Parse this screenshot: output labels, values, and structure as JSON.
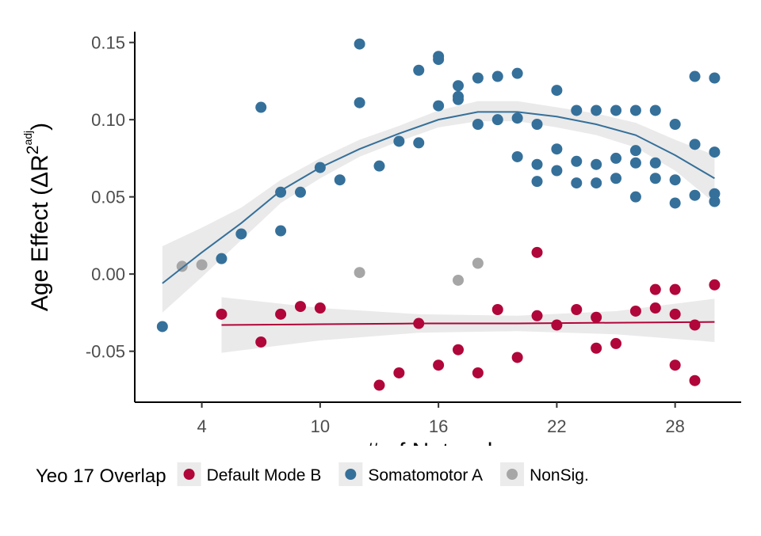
{
  "chart_data": {
    "type": "scatter",
    "y_label": {
      "text": "Age Effect (ΔR",
      "sup": "2",
      "sup_sub": "adj",
      "close": ")"
    },
    "x_label": "# of Networks",
    "legend_title": "Yeo 17 Overlap",
    "xlim": [
      0.6,
      31.35
    ],
    "ylim": [
      -0.083,
      0.157
    ],
    "xticks": [
      4,
      10,
      16,
      22,
      28
    ],
    "yticks": [
      -0.05,
      {
        "value": 0,
        "label": "0.00"
      },
      0.05,
      {
        "value": 0.1,
        "label": "0.10"
      },
      0.15
    ],
    "band_color": "#e6e6e6",
    "series": [
      {
        "name": "Default Mode B",
        "color": "#b0063a",
        "x": [
          5,
          7,
          8,
          9,
          10,
          13,
          14,
          15,
          16,
          17,
          18,
          19,
          20,
          21,
          21,
          22,
          23,
          24,
          24,
          25,
          26,
          27,
          27,
          28,
          28,
          28,
          29,
          29,
          30
        ],
        "values": [
          -0.026,
          -0.044,
          -0.026,
          -0.021,
          -0.022,
          -0.072,
          -0.064,
          -0.032,
          -0.059,
          -0.049,
          -0.064,
          -0.023,
          -0.054,
          0.014,
          -0.027,
          -0.033,
          -0.023,
          -0.028,
          -0.048,
          -0.045,
          -0.024,
          -0.01,
          -0.022,
          -0.01,
          -0.026,
          -0.059,
          -0.033,
          -0.069,
          -0.007
        ],
        "fit": {
          "x": [
            5,
            10,
            15,
            20,
            25,
            30
          ],
          "values": [
            -0.033,
            -0.0325,
            -0.032,
            -0.032,
            -0.0315,
            -0.031
          ],
          "upper": [
            -0.015,
            -0.022,
            -0.026,
            -0.027,
            -0.024,
            -0.016
          ],
          "lower": [
            -0.051,
            -0.043,
            -0.038,
            -0.037,
            -0.039,
            -0.044
          ]
        }
      },
      {
        "name": "Somatomotor A",
        "color": "#35709a",
        "x": [
          2,
          5,
          6,
          7,
          8,
          8,
          9,
          10,
          11,
          12,
          12,
          13,
          14,
          15,
          15,
          16,
          16,
          16,
          17,
          17,
          17,
          18,
          18,
          19,
          19,
          20,
          20,
          20,
          21,
          21,
          21,
          22,
          22,
          22,
          23,
          23,
          23,
          24,
          24,
          24,
          25,
          25,
          25,
          26,
          26,
          26,
          26,
          27,
          27,
          27,
          28,
          28,
          28,
          29,
          29,
          29,
          30,
          30,
          30,
          30
        ],
        "values": [
          -0.034,
          0.01,
          0.026,
          0.108,
          0.053,
          0.028,
          0.053,
          0.069,
          0.061,
          0.149,
          0.111,
          0.07,
          0.086,
          0.132,
          0.085,
          0.141,
          0.139,
          0.109,
          0.122,
          0.115,
          0.113,
          0.127,
          0.097,
          0.128,
          0.1,
          0.13,
          0.101,
          0.076,
          0.097,
          0.071,
          0.06,
          0.119,
          0.081,
          0.067,
          0.106,
          0.073,
          0.059,
          0.106,
          0.071,
          0.059,
          0.106,
          0.075,
          0.062,
          0.106,
          0.08,
          0.072,
          0.05,
          0.106,
          0.072,
          0.062,
          0.097,
          0.061,
          0.046,
          0.128,
          0.084,
          0.051,
          0.127,
          0.079,
          0.052,
          0.047
        ],
        "fit": {
          "x": [
            2,
            4,
            6,
            8,
            10,
            12,
            14,
            16,
            18,
            20,
            22,
            24,
            26,
            28,
            30
          ],
          "values": [
            -0.006,
            0.014,
            0.033,
            0.054,
            0.069,
            0.081,
            0.091,
            0.1,
            0.105,
            0.105,
            0.102,
            0.097,
            0.09,
            0.077,
            0.062
          ],
          "upper": [
            0.018,
            0.03,
            0.043,
            0.061,
            0.075,
            0.087,
            0.096,
            0.106,
            0.112,
            0.112,
            0.108,
            0.104,
            0.098,
            0.087,
            0.077
          ],
          "lower": [
            -0.025,
            -0.002,
            0.022,
            0.046,
            0.062,
            0.076,
            0.086,
            0.095,
            0.099,
            0.099,
            0.095,
            0.09,
            0.082,
            0.067,
            0.046
          ]
        }
      },
      {
        "name": "NonSig.",
        "color": "#a6a6a6",
        "x": [
          3,
          4,
          12,
          17,
          18
        ],
        "values": [
          0.005,
          0.006,
          0.001,
          -0.004,
          0.007
        ]
      }
    ]
  }
}
